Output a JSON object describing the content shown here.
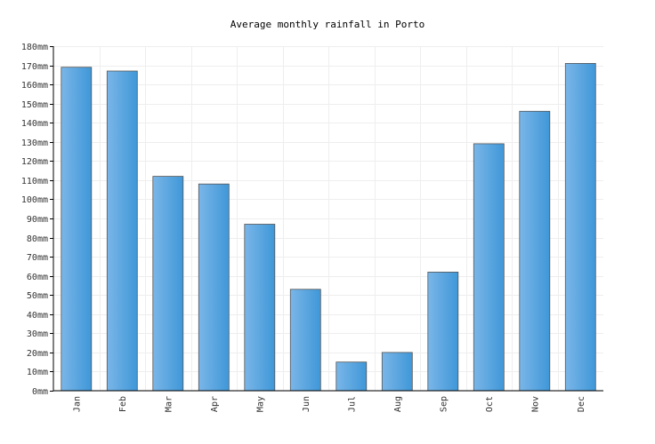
{
  "chart_data": {
    "type": "bar",
    "title": "Average monthly rainfall in Porto",
    "xlabel": "",
    "ylabel": "",
    "unit": "mm",
    "categories": [
      "Jan",
      "Feb",
      "Mar",
      "Apr",
      "May",
      "Jun",
      "Jul",
      "Aug",
      "Sep",
      "Oct",
      "Nov",
      "Dec"
    ],
    "values": [
      169,
      167,
      112,
      108,
      87,
      53,
      15,
      20,
      62,
      129,
      146,
      171
    ],
    "ylim": [
      0,
      180
    ],
    "ytick_step": 10,
    "grid": true,
    "legend": "none",
    "colors": {
      "bar_light": "#7ab6e8",
      "bar_dark": "#3f97d8",
      "bar_edge": "#555555",
      "grid": "#eeeeee"
    }
  }
}
